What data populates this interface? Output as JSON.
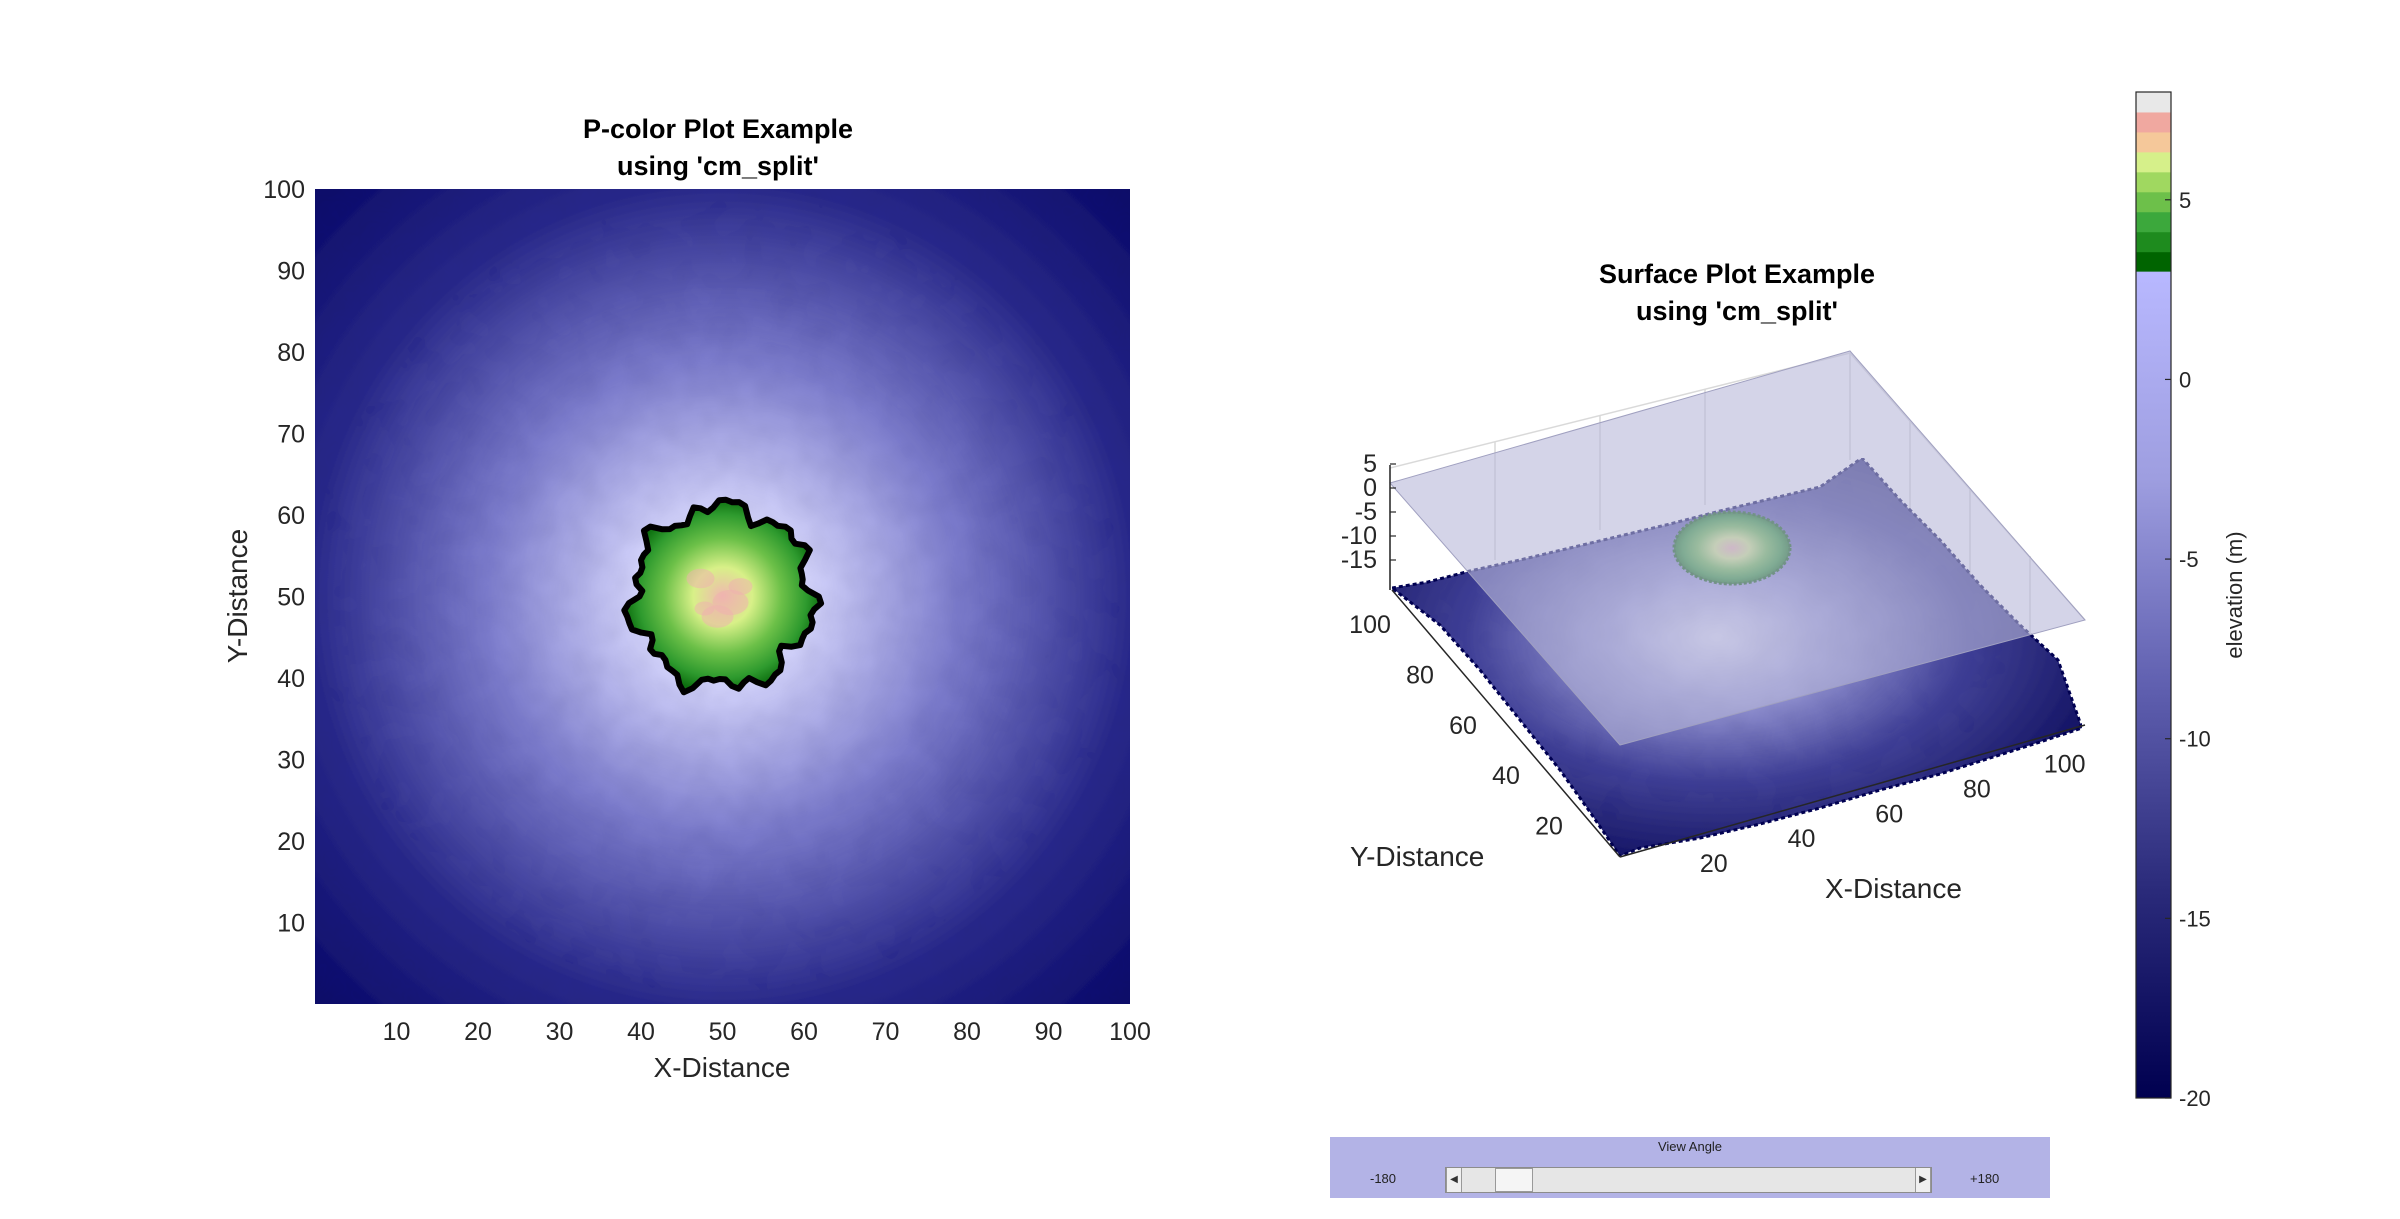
{
  "chart_data": [
    {
      "type": "heatmap",
      "title": [
        "P-color Plot Example",
        "using 'cm_split'"
      ],
      "xlabel": "X-Distance",
      "ylabel": "Y-Distance",
      "xlim": [
        0,
        100
      ],
      "ylim": [
        0,
        100
      ],
      "xticks": [
        10,
        20,
        30,
        40,
        50,
        60,
        70,
        80,
        90,
        100
      ],
      "yticks": [
        10,
        20,
        30,
        40,
        50,
        60,
        70,
        80,
        90,
        100
      ],
      "peak_center": [
        50,
        50
      ],
      "land_contour_radius": 11
    },
    {
      "type": "surface",
      "title": [
        "Surface Plot Example",
        "using 'cm_split'"
      ],
      "xlabel": "X-Distance",
      "ylabel": "Y-Distance",
      "xticks": [
        "20",
        "40",
        "60",
        "80",
        "100"
      ],
      "yticks": [
        "20",
        "40",
        "60",
        "80",
        "100"
      ],
      "zticks": [
        "5",
        "0",
        "-5",
        "-10",
        "-15"
      ],
      "transparent_plane_level": 0
    }
  ],
  "colorbar": {
    "label": "elevation (m)",
    "ticks": [
      "5",
      "0",
      "-5",
      "-10",
      "-15",
      "-20"
    ],
    "tick_values": [
      5,
      0,
      -5,
      -10,
      -15,
      -20
    ],
    "range": [
      -20,
      8
    ],
    "split_level": 3,
    "land_colors": [
      "#006400",
      "#1e8b1e",
      "#3ca83c",
      "#6dc04a",
      "#a0d860",
      "#d6f08a",
      "#f5c89a",
      "#f0a8a0",
      "#e8e8e8"
    ],
    "water_colors": [
      "#000050",
      "#2a2a7a",
      "#6060b0",
      "#9e9ee0",
      "#b8b8ff"
    ]
  },
  "view_control": {
    "title": "View Angle",
    "min_label": "-180",
    "max_label": "+180",
    "value": -150
  }
}
